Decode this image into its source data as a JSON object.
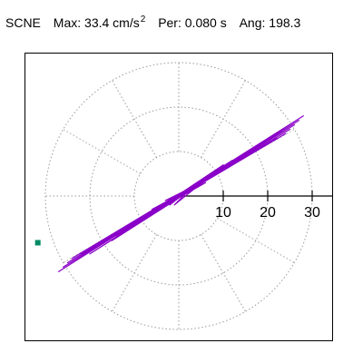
{
  "header": {
    "station": "SCNE",
    "max_label": "Max:",
    "max_value": "33.4 cm/s",
    "max_exponent": "2",
    "per_label": "Per:",
    "per_value": "0.080 s",
    "ang_label": "Ang:",
    "ang_value": "198.3"
  },
  "chart_data": {
    "type": "scatter",
    "title": "",
    "xlabel": "",
    "ylabel": "",
    "radial_ticks": [
      10,
      20,
      30
    ],
    "radial_tick_labels": [
      "10",
      "20",
      "30"
    ],
    "angle_ticks_deg": [
      0,
      30,
      60,
      90,
      120,
      150,
      180,
      210,
      240,
      270,
      300,
      330
    ],
    "rmax": 40,
    "grid": true,
    "colors": {
      "trace": "#8a00c8",
      "marker": "#008a63",
      "axis": "#000000",
      "grid": "#9a9a9a"
    },
    "series": [
      {
        "x": [
          0,
          2,
          -1,
          3,
          -2,
          1,
          -3,
          4,
          -1,
          2,
          -4,
          5,
          -2,
          3,
          -5,
          4,
          -1,
          6,
          -3,
          2,
          -6,
          7,
          -2,
          5,
          -7,
          8,
          -4,
          6,
          -8,
          9,
          -5,
          10,
          -8,
          12,
          -10,
          14,
          -12,
          16,
          -14,
          18,
          -16,
          20,
          -18,
          22,
          -20,
          24,
          -22,
          25,
          -24,
          26,
          -25,
          27,
          -26,
          28,
          -27,
          22,
          -20,
          18,
          -15,
          10,
          -12,
          8,
          -6,
          4,
          -2,
          1
        ],
        "y": [
          0,
          1,
          -1,
          2,
          -2,
          1,
          -1,
          2,
          -2,
          1,
          -2,
          3,
          -1,
          2,
          -3,
          2,
          -1,
          3,
          -2,
          1,
          -3,
          4,
          -1,
          3,
          -4,
          5,
          -2,
          4,
          -5,
          6,
          -3,
          7,
          -5,
          8,
          -6,
          9,
          -8,
          10,
          -9,
          11,
          -10,
          12,
          -11,
          13,
          -12,
          14,
          -13,
          15,
          -14,
          16,
          -15,
          17,
          -16,
          18,
          -17,
          14,
          -13,
          11,
          -10,
          7,
          -8,
          5,
          -4,
          2,
          -1,
          0
        ]
      }
    ],
    "marker_point": {
      "x": -31.7,
      "y": -10.5
    }
  }
}
